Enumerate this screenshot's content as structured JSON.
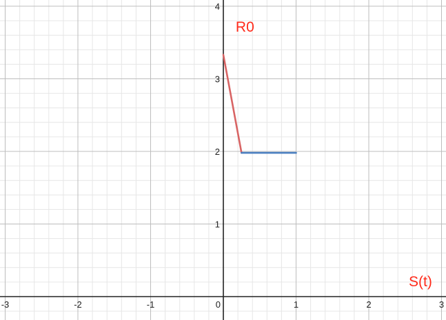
{
  "chart_data": {
    "type": "line",
    "title": "",
    "xlabel": "",
    "ylabel": "",
    "xlim": [
      -3,
      3
    ],
    "ylim": [
      0,
      4.1
    ],
    "grid": true,
    "x_ticks": [
      "-3",
      "-2",
      "-1",
      "0",
      "1",
      "2",
      "3"
    ],
    "y_ticks": [
      "1",
      "2",
      "3",
      "4"
    ],
    "series": [
      {
        "color": "#d86464",
        "points": [
          [
            0,
            3.33
          ],
          [
            0.25,
            1.98
          ]
        ]
      },
      {
        "color": "#4a7fc0",
        "points": [
          [
            0.25,
            1.98
          ],
          [
            1.0,
            1.98
          ]
        ]
      }
    ],
    "annotations": [
      {
        "text": "R0",
        "x": 0.17,
        "y": 3.65,
        "color": "#ff2a1a"
      },
      {
        "text": "S(t)",
        "x": 2.55,
        "y": 0.14,
        "color": "#ff2a1a"
      }
    ]
  }
}
